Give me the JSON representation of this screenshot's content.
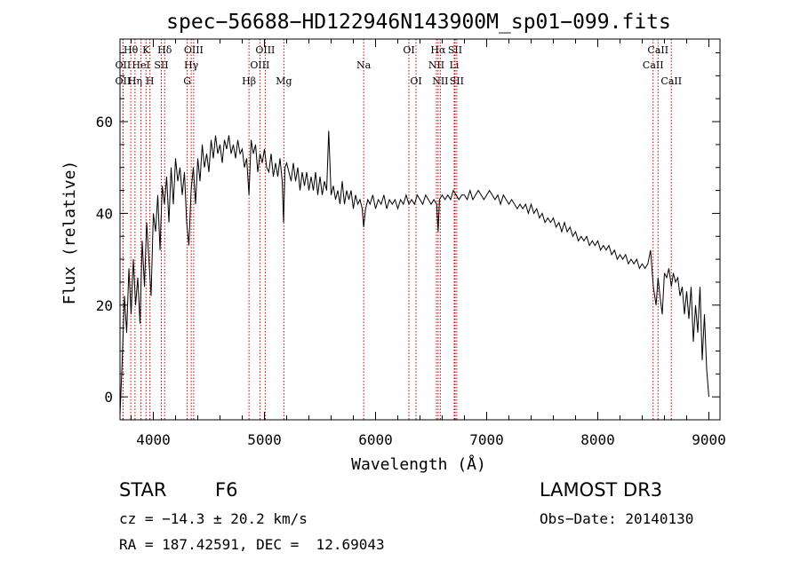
{
  "chart_data": {
    "type": "line",
    "title": "spec−56688−HD122946N143900M_sp01−099.fits",
    "xlabel": "Wavelength (Å)",
    "ylabel": "Flux (relative)",
    "xlim": [
      3700,
      9100
    ],
    "ylim": [
      -5,
      78
    ],
    "xticks": [
      4000,
      5000,
      6000,
      7000,
      8000,
      9000
    ],
    "yticks": [
      0,
      20,
      40,
      60
    ],
    "grid": false,
    "series": [
      {
        "name": "flux",
        "x": [
          3700,
          3720,
          3740,
          3760,
          3780,
          3800,
          3820,
          3840,
          3860,
          3880,
          3900,
          3920,
          3940,
          3960,
          3980,
          4000,
          4020,
          4040,
          4060,
          4080,
          4100,
          4120,
          4140,
          4160,
          4180,
          4200,
          4220,
          4240,
          4260,
          4280,
          4300,
          4320,
          4340,
          4360,
          4380,
          4400,
          4420,
          4440,
          4460,
          4480,
          4500,
          4520,
          4540,
          4560,
          4580,
          4600,
          4620,
          4640,
          4660,
          4680,
          4700,
          4720,
          4740,
          4760,
          4780,
          4800,
          4820,
          4840,
          4861,
          4880,
          4900,
          4920,
          4940,
          4960,
          4980,
          5000,
          5020,
          5040,
          5060,
          5080,
          5100,
          5120,
          5140,
          5160,
          5172,
          5185,
          5200,
          5220,
          5240,
          5260,
          5280,
          5300,
          5320,
          5340,
          5360,
          5380,
          5400,
          5420,
          5440,
          5460,
          5480,
          5500,
          5520,
          5540,
          5560,
          5578,
          5600,
          5620,
          5640,
          5660,
          5680,
          5700,
          5720,
          5740,
          5760,
          5780,
          5800,
          5820,
          5840,
          5860,
          5880,
          5893,
          5910,
          5930,
          5950,
          5975,
          6000,
          6025,
          6050,
          6075,
          6100,
          6125,
          6150,
          6175,
          6200,
          6225,
          6250,
          6275,
          6300,
          6325,
          6350,
          6375,
          6400,
          6425,
          6450,
          6475,
          6500,
          6525,
          6550,
          6563,
          6575,
          6600,
          6625,
          6650,
          6675,
          6700,
          6725,
          6750,
          6775,
          6800,
          6825,
          6850,
          6875,
          6900,
          6925,
          6950,
          6975,
          7000,
          7025,
          7050,
          7075,
          7100,
          7125,
          7150,
          7175,
          7200,
          7225,
          7250,
          7275,
          7300,
          7325,
          7350,
          7375,
          7400,
          7425,
          7450,
          7475,
          7500,
          7525,
          7550,
          7575,
          7600,
          7625,
          7650,
          7675,
          7700,
          7725,
          7750,
          7775,
          7800,
          7825,
          7850,
          7875,
          7900,
          7925,
          7950,
          7975,
          8000,
          8025,
          8050,
          8075,
          8100,
          8125,
          8150,
          8175,
          8200,
          8225,
          8250,
          8275,
          8300,
          8325,
          8350,
          8375,
          8400,
          8425,
          8450,
          8475,
          8500,
          8525,
          8542,
          8560,
          8580,
          8600,
          8620,
          8640,
          8662,
          8680,
          8700,
          8720,
          8740,
          8760,
          8780,
          8800,
          8820,
          8840,
          8860,
          8880,
          8900,
          8920,
          8940,
          8960,
          8980,
          9000
        ],
        "values": [
          -4,
          8,
          22,
          14,
          28,
          18,
          30,
          20,
          26,
          16,
          34,
          24,
          38,
          30,
          22,
          40,
          36,
          44,
          32,
          46,
          42,
          48,
          38,
          50,
          42,
          52,
          47,
          50,
          44,
          49,
          38,
          33,
          45,
          50,
          42,
          52,
          47,
          55,
          50,
          53,
          49,
          56,
          52,
          57,
          53,
          55,
          51,
          56,
          54,
          57,
          53,
          55,
          52,
          56,
          53,
          54,
          50,
          52,
          44,
          56,
          53,
          55,
          49,
          53,
          51,
          54,
          50,
          49,
          53,
          48,
          51,
          48,
          52,
          47,
          38,
          50,
          51,
          49,
          47,
          51,
          47,
          50,
          45,
          49,
          46,
          49,
          45,
          48,
          45,
          49,
          44,
          48,
          44,
          47,
          45,
          58,
          44,
          46,
          43,
          45,
          42,
          47,
          42,
          45,
          43,
          45,
          41,
          44,
          42,
          43,
          41,
          37,
          41,
          43,
          42,
          44,
          41,
          43,
          42,
          44,
          41,
          43,
          42,
          43,
          41,
          43,
          42,
          44,
          42,
          43,
          42,
          44,
          43,
          42,
          44,
          43,
          42,
          43,
          42,
          36,
          43,
          44,
          43,
          44,
          43,
          45,
          44,
          43,
          44,
          44,
          43,
          45,
          43,
          44,
          45,
          44,
          43,
          44,
          45,
          44,
          43,
          44,
          42,
          44,
          43,
          42,
          43,
          42,
          41,
          42,
          41,
          42,
          40,
          42,
          40,
          41,
          39,
          40,
          38,
          39,
          38,
          39,
          37,
          38,
          36,
          38,
          36,
          37,
          35,
          36,
          34,
          35,
          34,
          35,
          33,
          34,
          33,
          34,
          32,
          33,
          32,
          33,
          31,
          32,
          30,
          31,
          30,
          31,
          29,
          30,
          29,
          30,
          28,
          29,
          28,
          29,
          32,
          24,
          20,
          26,
          22,
          18,
          27,
          26,
          28,
          24,
          27,
          25,
          26,
          22,
          24,
          18,
          23,
          17,
          24,
          12,
          20,
          14,
          24,
          8,
          18,
          6,
          0
        ]
      }
    ],
    "lines": [
      {
        "label": "Hθ",
        "x": 3797,
        "row": 0
      },
      {
        "label": "OII",
        "x": 3727,
        "row": 1
      },
      {
        "label": "OII",
        "x": 3727,
        "row": 2
      },
      {
        "label": "K",
        "x": 3934,
        "row": 0
      },
      {
        "label": "HeI",
        "x": 3889,
        "row": 1
      },
      {
        "label": "Hη",
        "x": 3835,
        "row": 2
      },
      {
        "label": "Hδ",
        "x": 4102,
        "row": 0
      },
      {
        "label": "SII",
        "x": 4072,
        "row": 1
      },
      {
        "label": "H",
        "x": 3969,
        "row": 2
      },
      {
        "label": "OIII",
        "x": 4363,
        "row": 0
      },
      {
        "label": "Hγ",
        "x": 4341,
        "row": 1
      },
      {
        "label": "G",
        "x": 4305,
        "row": 2
      },
      {
        "label": "OIII",
        "x": 5007,
        "row": 0
      },
      {
        "label": "OIII",
        "x": 4959,
        "row": 1
      },
      {
        "label": "Hβ",
        "x": 4861,
        "row": 2
      },
      {
        "label": "Mg",
        "x": 5175,
        "row": 2
      },
      {
        "label": "Na",
        "x": 5893,
        "row": 1
      },
      {
        "label": "OI",
        "x": 6300,
        "row": 0
      },
      {
        "label": "OI",
        "x": 6364,
        "row": 2
      },
      {
        "label": "Hα",
        "x": 6563,
        "row": 0
      },
      {
        "label": "NII",
        "x": 6548,
        "row": 1
      },
      {
        "label": "NII",
        "x": 6583,
        "row": 2
      },
      {
        "label": "SII",
        "x": 6716,
        "row": 0
      },
      {
        "label": "Li",
        "x": 6708,
        "row": 1
      },
      {
        "label": "SII",
        "x": 6731,
        "row": 2
      },
      {
        "label": "CaII",
        "x": 8542,
        "row": 0
      },
      {
        "label": "CaII",
        "x": 8498,
        "row": 1
      },
      {
        "label": "CaII",
        "x": 8662,
        "row": 2
      }
    ],
    "colors": {
      "spectrum": "#000000",
      "line_marker": "#cc0000"
    }
  },
  "info": {
    "object_class": "STAR",
    "subclass": "F6",
    "survey": "LAMOST DR3",
    "cz": "cz = −14.3 ± 20.2 km/s",
    "obs_date": "Obs−Date: 20140130",
    "coords": "RA = 187.42591, DEC =  12.69043"
  }
}
